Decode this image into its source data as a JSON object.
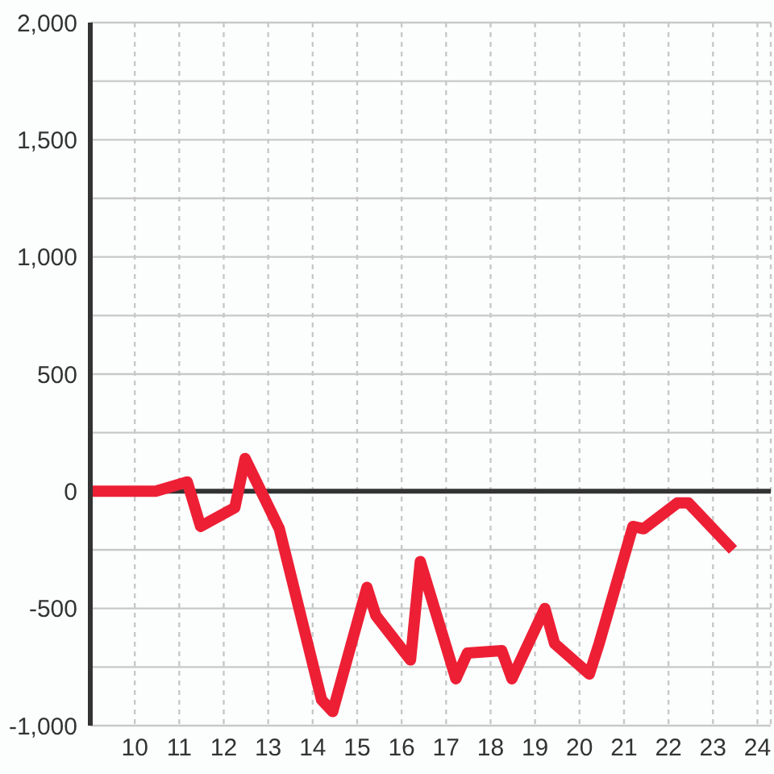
{
  "chart_data": {
    "type": "line",
    "x": [
      9,
      10.47,
      11.18,
      11.48,
      12.25,
      12.48,
      13.25,
      14.2,
      14.45,
      15.22,
      15.42,
      16.2,
      16.42,
      17.22,
      17.48,
      18.25,
      18.48,
      19.22,
      19.44,
      20.22,
      20.44,
      21.2,
      21.44,
      22.2,
      22.45,
      23.45
    ],
    "values": [
      0,
      0,
      40,
      -150,
      -70,
      140,
      -160,
      -890,
      -940,
      -410,
      -530,
      -720,
      -300,
      -800,
      -690,
      -680,
      -800,
      -500,
      -650,
      -780,
      -650,
      -150,
      -160,
      -50,
      -50,
      -250
    ],
    "color": "#ed1f35",
    "line_style": "solid",
    "xlim": [
      9,
      24.3
    ],
    "xticks": [
      10,
      11,
      12,
      13,
      14,
      15,
      16,
      17,
      18,
      19,
      20,
      21,
      22,
      23,
      24
    ],
    "ylim": [
      -1000,
      2000
    ],
    "yticks": [
      {
        "value": -1000,
        "label": "-1,000"
      },
      {
        "value": -750,
        "label": null
      },
      -500,
      {
        "value": -250,
        "label": null
      },
      0,
      {
        "value": 250,
        "label": null
      },
      500,
      {
        "value": 750,
        "label": null
      },
      {
        "value": 1000,
        "label": "1,000"
      },
      {
        "value": 1250,
        "label": null
      },
      {
        "value": 1500,
        "label": "1,500"
      },
      {
        "value": 1750,
        "label": null
      },
      {
        "value": 2000,
        "label": "2,000"
      }
    ],
    "grid": true,
    "ref_lines": [
      {
        "axis": "y",
        "value": 0,
        "color": "#333333"
      }
    ]
  }
}
